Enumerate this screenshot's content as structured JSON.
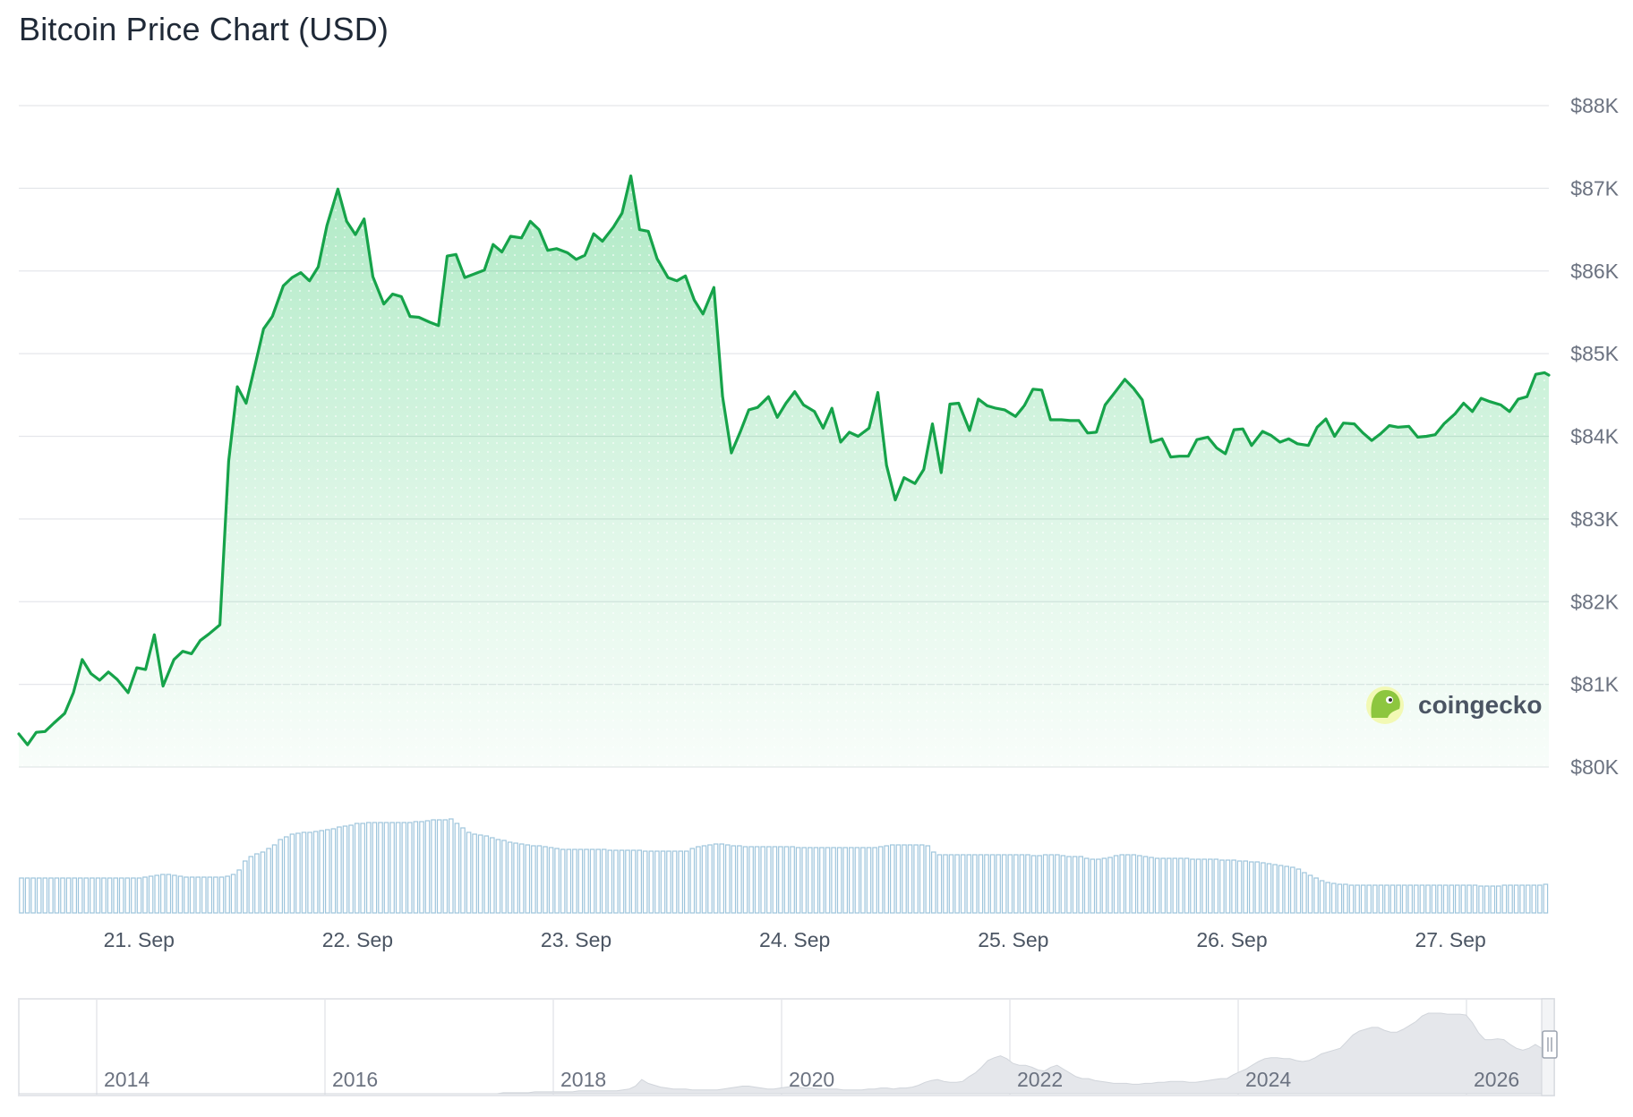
{
  "page": {
    "title": "Bitcoin Price Chart (USD)"
  },
  "brand": {
    "name": "coingecko",
    "logo_icon": "gecko-logo-icon"
  },
  "colors": {
    "line": "#16a34a",
    "area": "#22c55e",
    "volume_bar": "#9ec5dc",
    "grid": "#e5e7eb",
    "navigator_fill": "#e5e7eb"
  },
  "chart_data": {
    "type": "area",
    "title": "Bitcoin Price Chart (USD)",
    "ylabel": "",
    "xlabel": "",
    "ylim": [
      80000,
      88000
    ],
    "ytick_values": [
      80000,
      81000,
      82000,
      83000,
      84000,
      85000,
      86000,
      87000,
      88000
    ],
    "ytick_labels": [
      "$80K",
      "$81K",
      "$82K",
      "$83K",
      "$84K",
      "$85K",
      "$86K",
      "$87K",
      "$88K"
    ],
    "xlim_days": [
      20.45,
      27.45
    ],
    "xticks": [
      {
        "day": 21,
        "label": "21. Sep"
      },
      {
        "day": 22,
        "label": "22. Sep"
      },
      {
        "day": 23,
        "label": "23. Sep"
      },
      {
        "day": 24,
        "label": "24. Sep"
      },
      {
        "day": 25,
        "label": "25. Sep"
      },
      {
        "day": 26,
        "label": "26. Sep"
      },
      {
        "day": 27,
        "label": "27. Sep"
      }
    ],
    "grid": true,
    "legend": "none",
    "series": [
      {
        "values": [
          [
            20.45,
            80400
          ],
          [
            20.49,
            80270
          ],
          [
            20.53,
            80420
          ],
          [
            20.57,
            80430
          ],
          [
            20.61,
            80530
          ],
          [
            20.66,
            80650
          ],
          [
            20.7,
            80900
          ],
          [
            20.74,
            81300
          ],
          [
            20.78,
            81130
          ],
          [
            20.82,
            81050
          ],
          [
            20.86,
            81150
          ],
          [
            20.9,
            81060
          ],
          [
            20.95,
            80900
          ],
          [
            20.99,
            81200
          ],
          [
            21.03,
            81180
          ],
          [
            21.07,
            81600
          ],
          [
            21.11,
            80980
          ],
          [
            21.16,
            81300
          ],
          [
            21.2,
            81400
          ],
          [
            21.24,
            81370
          ],
          [
            21.28,
            81530
          ],
          [
            21.32,
            81610
          ],
          [
            21.37,
            81720
          ],
          [
            21.41,
            83700
          ],
          [
            21.45,
            84600
          ],
          [
            21.49,
            84400
          ],
          [
            21.53,
            84850
          ],
          [
            21.57,
            85300
          ],
          [
            21.61,
            85450
          ],
          [
            21.66,
            85820
          ],
          [
            21.7,
            85920
          ],
          [
            21.74,
            85980
          ],
          [
            21.78,
            85880
          ],
          [
            21.82,
            86050
          ],
          [
            21.86,
            86550
          ],
          [
            21.91,
            86990
          ],
          [
            21.95,
            86600
          ],
          [
            21.99,
            86440
          ],
          [
            22.03,
            86630
          ],
          [
            22.07,
            85930
          ],
          [
            22.12,
            85600
          ],
          [
            22.16,
            85720
          ],
          [
            22.2,
            85690
          ],
          [
            22.24,
            85450
          ],
          [
            22.28,
            85440
          ],
          [
            22.33,
            85380
          ],
          [
            22.37,
            85340
          ],
          [
            22.41,
            86180
          ],
          [
            22.45,
            86200
          ],
          [
            22.49,
            85920
          ],
          [
            22.54,
            85970
          ],
          [
            22.58,
            86010
          ],
          [
            22.62,
            86320
          ],
          [
            22.66,
            86230
          ],
          [
            22.7,
            86420
          ],
          [
            22.75,
            86400
          ],
          [
            22.79,
            86600
          ],
          [
            22.83,
            86500
          ],
          [
            22.87,
            86250
          ],
          [
            22.91,
            86270
          ],
          [
            22.96,
            86220
          ],
          [
            23.0,
            86140
          ],
          [
            23.04,
            86190
          ],
          [
            23.08,
            86450
          ],
          [
            23.12,
            86360
          ],
          [
            23.17,
            86530
          ],
          [
            23.21,
            86700
          ],
          [
            23.25,
            87150
          ],
          [
            23.29,
            86500
          ],
          [
            23.33,
            86480
          ],
          [
            23.37,
            86150
          ],
          [
            23.42,
            85920
          ],
          [
            23.46,
            85880
          ],
          [
            23.5,
            85940
          ],
          [
            23.54,
            85650
          ],
          [
            23.58,
            85480
          ],
          [
            23.63,
            85800
          ],
          [
            23.67,
            84480
          ],
          [
            23.71,
            83800
          ],
          [
            23.75,
            84050
          ],
          [
            23.79,
            84320
          ],
          [
            23.83,
            84350
          ],
          [
            23.88,
            84480
          ],
          [
            23.92,
            84230
          ],
          [
            23.96,
            84400
          ],
          [
            24.0,
            84540
          ],
          [
            24.04,
            84380
          ],
          [
            24.09,
            84300
          ],
          [
            24.13,
            84100
          ],
          [
            24.17,
            84340
          ],
          [
            24.21,
            83930
          ],
          [
            24.25,
            84050
          ],
          [
            24.29,
            84000
          ],
          [
            24.34,
            84100
          ],
          [
            24.38,
            84530
          ],
          [
            24.42,
            83650
          ],
          [
            24.46,
            83230
          ],
          [
            24.5,
            83500
          ],
          [
            24.55,
            83430
          ],
          [
            24.59,
            83600
          ],
          [
            24.63,
            84150
          ],
          [
            24.67,
            83560
          ],
          [
            24.71,
            84390
          ],
          [
            24.75,
            84400
          ],
          [
            24.8,
            84070
          ],
          [
            24.84,
            84450
          ],
          [
            24.88,
            84370
          ],
          [
            24.92,
            84340
          ],
          [
            24.96,
            84320
          ],
          [
            25.01,
            84240
          ],
          [
            25.05,
            84370
          ],
          [
            25.09,
            84570
          ],
          [
            25.13,
            84560
          ],
          [
            25.17,
            84200
          ],
          [
            25.22,
            84200
          ],
          [
            25.26,
            84190
          ],
          [
            25.3,
            84190
          ],
          [
            25.34,
            84040
          ],
          [
            25.38,
            84050
          ],
          [
            25.42,
            84380
          ],
          [
            25.47,
            84550
          ],
          [
            25.51,
            84690
          ],
          [
            25.55,
            84580
          ],
          [
            25.59,
            84440
          ],
          [
            25.63,
            83930
          ],
          [
            25.68,
            83970
          ],
          [
            25.72,
            83750
          ],
          [
            25.76,
            83760
          ],
          [
            25.8,
            83760
          ],
          [
            25.84,
            83960
          ],
          [
            25.89,
            83990
          ],
          [
            25.93,
            83860
          ],
          [
            25.97,
            83790
          ],
          [
            26.01,
            84080
          ],
          [
            26.05,
            84090
          ],
          [
            26.09,
            83890
          ],
          [
            26.14,
            84060
          ],
          [
            26.18,
            84010
          ],
          [
            26.22,
            83930
          ],
          [
            26.26,
            83970
          ],
          [
            26.3,
            83910
          ],
          [
            26.35,
            83890
          ],
          [
            26.39,
            84110
          ],
          [
            26.43,
            84210
          ],
          [
            26.47,
            84000
          ],
          [
            26.51,
            84160
          ],
          [
            26.56,
            84150
          ],
          [
            26.6,
            84040
          ],
          [
            26.64,
            83950
          ],
          [
            26.68,
            84030
          ],
          [
            26.72,
            84130
          ],
          [
            26.76,
            84110
          ],
          [
            26.81,
            84120
          ],
          [
            26.85,
            83990
          ],
          [
            26.89,
            84000
          ],
          [
            26.93,
            84020
          ],
          [
            26.97,
            84150
          ],
          [
            27.02,
            84270
          ],
          [
            27.06,
            84400
          ],
          [
            27.1,
            84300
          ],
          [
            27.14,
            84460
          ],
          [
            27.18,
            84420
          ],
          [
            27.23,
            84380
          ],
          [
            27.27,
            84300
          ],
          [
            27.31,
            84450
          ],
          [
            27.35,
            84480
          ],
          [
            27.39,
            84750
          ],
          [
            27.43,
            84770
          ],
          [
            27.45,
            84740
          ]
        ]
      }
    ],
    "volume": {
      "values": [
        39,
        39,
        39,
        39,
        39,
        39,
        39,
        39,
        39,
        39,
        39,
        39,
        39,
        39,
        39,
        39,
        39,
        39,
        39,
        39,
        39,
        40,
        41,
        42,
        43,
        43,
        42,
        41,
        40,
        40,
        40,
        40,
        40,
        40,
        40,
        41,
        43,
        48,
        58,
        63,
        66,
        68,
        72,
        76,
        82,
        85,
        88,
        89,
        90,
        90,
        91,
        92,
        93,
        94,
        96,
        97,
        98,
        100,
        100,
        101,
        101,
        101,
        101,
        101,
        101,
        101,
        101,
        102,
        102,
        103,
        104,
        104,
        104,
        105,
        100,
        95,
        90,
        88,
        87,
        86,
        84,
        82,
        81,
        79,
        78,
        77,
        76,
        75,
        75,
        74,
        73,
        72,
        71,
        71,
        71,
        71,
        71,
        71,
        71,
        71,
        70,
        70,
        70,
        70,
        70,
        70,
        69,
        69,
        69,
        69,
        69,
        69,
        69,
        69,
        72,
        74,
        75,
        76,
        77,
        77,
        76,
        75,
        75,
        74,
        74,
        74,
        74,
        74,
        74,
        74,
        74,
        74,
        73,
        73,
        73,
        73,
        73,
        73,
        73,
        73,
        73,
        73,
        73,
        73,
        73,
        73,
        74,
        75,
        76,
        76,
        76,
        76,
        76,
        76,
        75,
        68,
        65,
        65,
        65,
        65,
        65,
        65,
        65,
        65,
        65,
        65,
        65,
        65,
        65,
        65,
        65,
        65,
        64,
        64,
        65,
        65,
        65,
        64,
        63,
        63,
        63,
        61,
        60,
        60,
        61,
        62,
        64,
        65,
        65,
        65,
        64,
        63,
        62,
        61,
        61,
        61,
        61,
        61,
        61,
        60,
        60,
        60,
        60,
        60,
        59,
        59,
        59,
        58,
        58,
        57,
        57,
        56,
        55,
        54,
        53,
        52,
        51,
        49,
        45,
        42,
        39,
        36,
        34,
        33,
        32,
        32,
        31,
        31,
        31,
        31,
        31,
        31,
        31,
        31,
        31,
        31,
        31,
        31,
        31,
        31,
        31,
        31,
        31,
        31,
        31,
        31,
        31,
        31,
        30,
        30,
        30,
        30,
        31,
        31,
        31,
        31,
        31,
        31,
        31,
        32
      ]
    },
    "navigator": {
      "labels": [
        "2014",
        "2016",
        "2018",
        "2020",
        "2022",
        "2024",
        "2026"
      ],
      "profile": [
        0,
        0,
        0,
        0,
        0,
        0,
        0,
        0,
        0,
        0,
        0,
        0,
        0,
        0,
        0,
        0,
        0,
        0,
        0,
        0,
        0,
        0,
        0,
        0,
        0,
        0,
        0,
        0,
        0,
        0,
        0,
        0,
        0,
        0,
        0,
        0,
        0,
        0,
        0,
        0,
        0,
        0,
        0,
        0,
        0,
        0,
        0,
        0,
        0,
        0,
        0,
        0,
        0,
        0,
        0,
        0,
        0,
        0,
        0,
        0,
        0,
        0,
        0,
        0,
        0,
        0,
        0,
        0,
        0,
        0,
        0,
        0,
        0,
        0,
        0,
        0,
        0,
        1,
        1,
        1,
        1,
        1,
        2,
        2,
        2,
        2,
        2,
        2,
        2,
        3,
        3,
        3,
        3,
        3,
        3,
        3,
        4,
        5,
        8,
        15,
        11,
        9,
        7,
        6,
        5,
        5,
        5,
        4,
        4,
        4,
        4,
        4,
        5,
        6,
        7,
        8,
        8,
        7,
        6,
        5,
        5,
        6,
        7,
        8,
        7,
        6,
        6,
        5,
        5,
        5,
        5,
        4,
        4,
        4,
        4,
        5,
        5,
        6,
        6,
        5,
        6,
        6,
        7,
        9,
        12,
        14,
        15,
        13,
        12,
        12,
        13,
        18,
        22,
        28,
        35,
        38,
        40,
        37,
        32,
        30,
        30,
        28,
        25,
        24,
        28,
        30,
        26,
        22,
        18,
        16,
        16,
        14,
        13,
        12,
        11,
        11,
        11,
        10,
        10,
        11,
        11,
        12,
        12,
        13,
        13,
        13,
        12,
        12,
        13,
        14,
        15,
        16,
        16,
        20,
        23,
        26,
        30,
        34,
        37,
        38,
        38,
        37,
        37,
        35,
        34,
        35,
        38,
        42,
        44,
        46,
        48,
        55,
        62,
        66,
        68,
        70,
        70,
        67,
        65,
        65,
        68,
        72,
        76,
        82,
        85,
        85,
        85,
        84,
        84,
        84,
        83,
        75,
        64,
        57,
        57,
        58,
        57,
        52,
        48,
        46,
        48,
        52,
        48,
        46,
        60
      ]
    }
  }
}
